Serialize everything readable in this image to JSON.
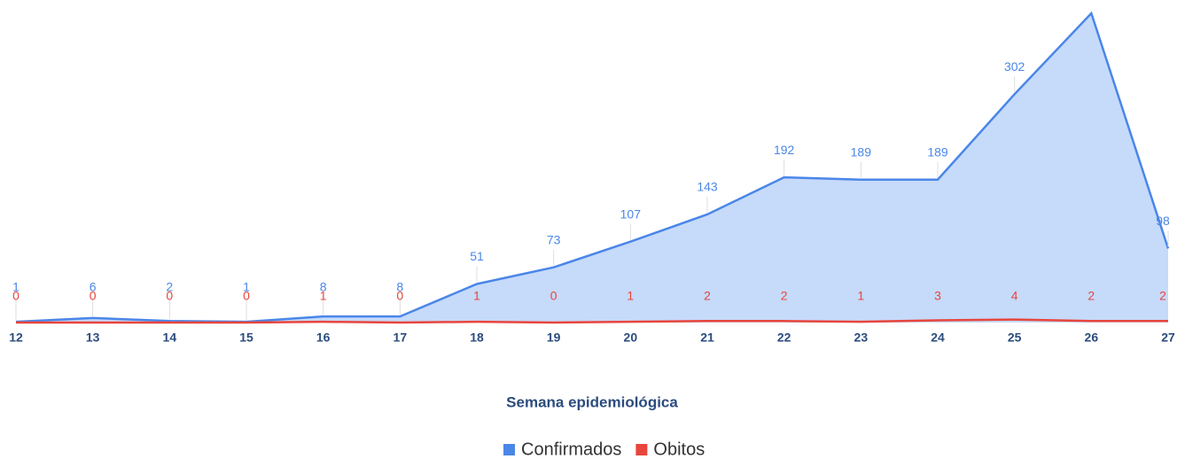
{
  "chart_data": {
    "type": "area",
    "x_label": "Semana epidemiológica",
    "categories": [
      "12",
      "13",
      "14",
      "15",
      "16",
      "17",
      "18",
      "19",
      "20",
      "21",
      "22",
      "23",
      "24",
      "25",
      "26",
      "27"
    ],
    "series": [
      {
        "name": "Confirmados",
        "color": "#4a86e8",
        "fill": "#c6dafa",
        "values": [
          1,
          6,
          2,
          1,
          8,
          8,
          51,
          73,
          107,
          143,
          192,
          189,
          189,
          302,
          409,
          98
        ]
      },
      {
        "name": "Obitos",
        "color": "#e8453c",
        "values": [
          0,
          0,
          0,
          0,
          1,
          0,
          1,
          0,
          1,
          2,
          2,
          1,
          3,
          4,
          2,
          2
        ]
      }
    ],
    "ylim": [
      0,
      409
    ],
    "legend": "bottom"
  }
}
